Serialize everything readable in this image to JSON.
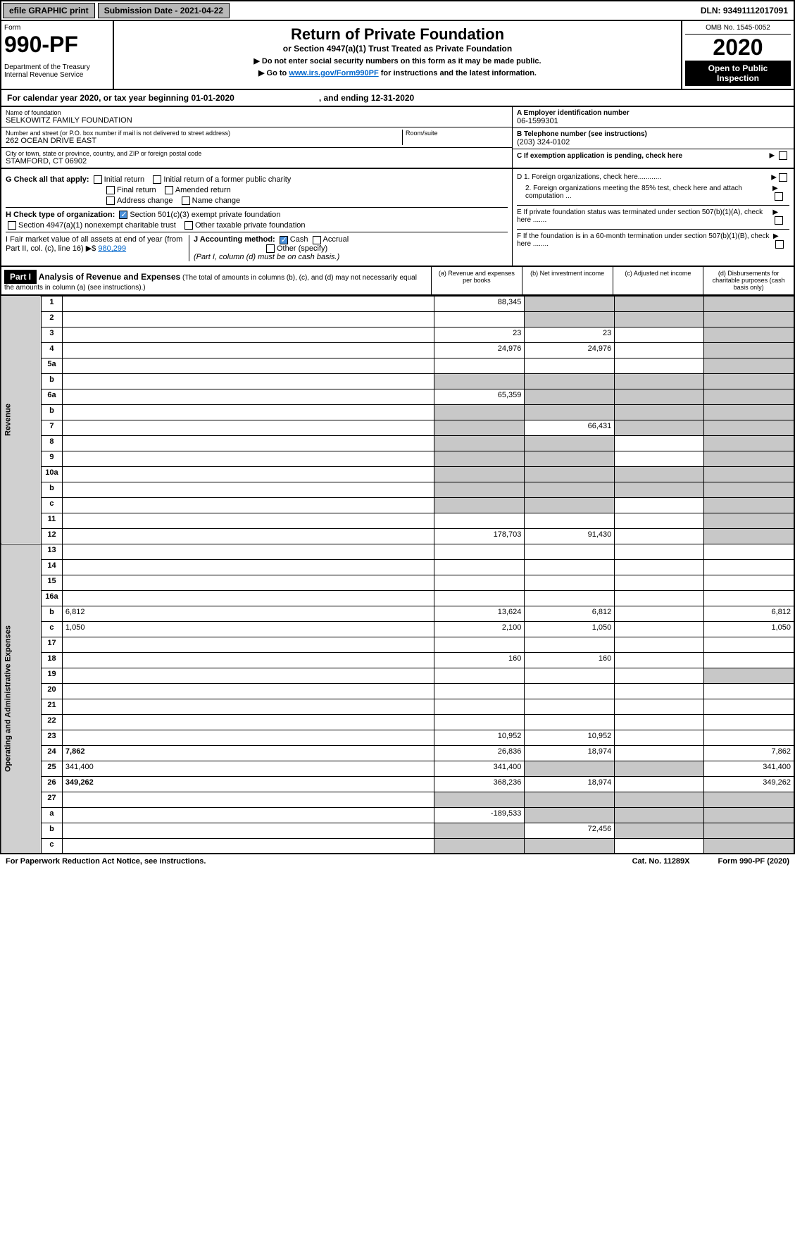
{
  "topbar": {
    "efile": "efile GRAPHIC print",
    "submission": "Submission Date - 2021-04-22",
    "dln": "DLN: 93491112017091"
  },
  "header": {
    "form_label": "Form",
    "form_num": "990-PF",
    "dept": "Department of the Treasury Internal Revenue Service",
    "title": "Return of Private Foundation",
    "subtitle": "or Section 4947(a)(1) Trust Treated as Private Foundation",
    "instr1": "▶ Do not enter social security numbers on this form as it may be made public.",
    "instr2": "▶ Go to ",
    "instr2_link": "www.irs.gov/Form990PF",
    "instr2_end": " for instructions and the latest information.",
    "omb": "OMB No. 1545-0052",
    "year": "2020",
    "open": "Open to Public Inspection"
  },
  "calyear": {
    "text": "For calendar year 2020, or tax year beginning 01-01-2020",
    "end": ", and ending 12-31-2020"
  },
  "info": {
    "name_label": "Name of foundation",
    "name": "SELKOWITZ FAMILY FOUNDATION",
    "addr_label": "Number and street (or P.O. box number if mail is not delivered to street address)",
    "addr": "262 OCEAN DRIVE EAST",
    "room_label": "Room/suite",
    "city_label": "City or town, state or province, country, and ZIP or foreign postal code",
    "city": "STAMFORD, CT  06902",
    "a_label": "A Employer identification number",
    "a_val": "06-1599301",
    "b_label": "B Telephone number (see instructions)",
    "b_val": "(203) 324-0102",
    "c_label": "C If exemption application is pending, check here"
  },
  "checks": {
    "g": "G Check all that apply:",
    "g1": "Initial return",
    "g2": "Initial return of a former public charity",
    "g3": "Final return",
    "g4": "Amended return",
    "g5": "Address change",
    "g6": "Name change",
    "h": "H Check type of organization:",
    "h1": "Section 501(c)(3) exempt private foundation",
    "h2": "Section 4947(a)(1) nonexempt charitable trust",
    "h3": "Other taxable private foundation",
    "i": "I Fair market value of all assets at end of year (from Part II, col. (c), line 16) ▶$ ",
    "i_val": "980,299",
    "j": "J Accounting method:",
    "j1": "Cash",
    "j2": "Accrual",
    "j3": "Other (specify)",
    "j_note": "(Part I, column (d) must be on cash basis.)",
    "d1": "D 1. Foreign organizations, check here............",
    "d2": "2. Foreign organizations meeting the 85% test, check here and attach computation ...",
    "e": "E  If private foundation status was terminated under section 507(b)(1)(A), check here .......",
    "f": "F  If the foundation is in a 60-month termination under section 507(b)(1)(B), check here ........"
  },
  "part1": {
    "label": "Part I",
    "title": "Analysis of Revenue and Expenses",
    "note": "(The total of amounts in columns (b), (c), and (d) may not necessarily equal the amounts in column (a) (see instructions).)",
    "col_a": "(a)    Revenue and expenses per books",
    "col_b": "(b)   Net investment income",
    "col_c": "(c)   Adjusted net income",
    "col_d": "(d)   Disbursements for charitable purposes (cash basis only)"
  },
  "rows": [
    {
      "n": "1",
      "d": "",
      "a": "88,345",
      "b": "",
      "c": "",
      "sb": true,
      "sc": true,
      "sd": true
    },
    {
      "n": "2",
      "d": "",
      "a": "",
      "b": "",
      "c": "",
      "sb": true,
      "sc": true,
      "sd": true
    },
    {
      "n": "3",
      "d": "",
      "a": "23",
      "b": "23",
      "c": "",
      "sd": true
    },
    {
      "n": "4",
      "d": "",
      "a": "24,976",
      "b": "24,976",
      "c": "",
      "sd": true
    },
    {
      "n": "5a",
      "d": "",
      "a": "",
      "b": "",
      "c": "",
      "sd": true
    },
    {
      "n": "b",
      "d": "",
      "a": "",
      "b": "",
      "c": "",
      "sa": true,
      "sb": true,
      "sc": true,
      "sd": true
    },
    {
      "n": "6a",
      "d": "",
      "a": "65,359",
      "b": "",
      "c": "",
      "sb": true,
      "sc": true,
      "sd": true
    },
    {
      "n": "b",
      "d": "",
      "a": "",
      "b": "",
      "c": "",
      "sa": true,
      "sb": true,
      "sc": true,
      "sd": true
    },
    {
      "n": "7",
      "d": "",
      "a": "",
      "b": "66,431",
      "c": "",
      "sa": true,
      "sc": true,
      "sd": true
    },
    {
      "n": "8",
      "d": "",
      "a": "",
      "b": "",
      "c": "",
      "sa": true,
      "sb": true,
      "sd": true
    },
    {
      "n": "9",
      "d": "",
      "a": "",
      "b": "",
      "c": "",
      "sa": true,
      "sb": true,
      "sd": true
    },
    {
      "n": "10a",
      "d": "",
      "a": "",
      "b": "",
      "c": "",
      "sa": true,
      "sb": true,
      "sc": true,
      "sd": true
    },
    {
      "n": "b",
      "d": "",
      "a": "",
      "b": "",
      "c": "",
      "sa": true,
      "sb": true,
      "sc": true,
      "sd": true
    },
    {
      "n": "c",
      "d": "",
      "a": "",
      "b": "",
      "c": "",
      "sa": true,
      "sb": true,
      "sd": true
    },
    {
      "n": "11",
      "d": "",
      "a": "",
      "b": "",
      "c": "",
      "sd": true
    },
    {
      "n": "12",
      "d": "",
      "a": "178,703",
      "b": "91,430",
      "c": "",
      "bold": true,
      "sd": true
    },
    {
      "n": "13",
      "d": "",
      "a": "",
      "b": "",
      "c": ""
    },
    {
      "n": "14",
      "d": "",
      "a": "",
      "b": "",
      "c": ""
    },
    {
      "n": "15",
      "d": "",
      "a": "",
      "b": "",
      "c": ""
    },
    {
      "n": "16a",
      "d": "",
      "a": "",
      "b": "",
      "c": ""
    },
    {
      "n": "b",
      "d": "6,812",
      "a": "13,624",
      "b": "6,812",
      "c": ""
    },
    {
      "n": "c",
      "d": "1,050",
      "a": "2,100",
      "b": "1,050",
      "c": ""
    },
    {
      "n": "17",
      "d": "",
      "a": "",
      "b": "",
      "c": ""
    },
    {
      "n": "18",
      "d": "",
      "a": "160",
      "b": "160",
      "c": ""
    },
    {
      "n": "19",
      "d": "",
      "a": "",
      "b": "",
      "c": "",
      "sd": true
    },
    {
      "n": "20",
      "d": "",
      "a": "",
      "b": "",
      "c": ""
    },
    {
      "n": "21",
      "d": "",
      "a": "",
      "b": "",
      "c": ""
    },
    {
      "n": "22",
      "d": "",
      "a": "",
      "b": "",
      "c": ""
    },
    {
      "n": "23",
      "d": "",
      "a": "10,952",
      "b": "10,952",
      "c": ""
    },
    {
      "n": "24",
      "d": "7,862",
      "a": "26,836",
      "b": "18,974",
      "c": "",
      "bold": true
    },
    {
      "n": "25",
      "d": "341,400",
      "a": "341,400",
      "b": "",
      "c": "",
      "sb": true,
      "sc": true
    },
    {
      "n": "26",
      "d": "349,262",
      "a": "368,236",
      "b": "18,974",
      "c": "",
      "bold": true
    },
    {
      "n": "27",
      "d": "",
      "a": "",
      "b": "",
      "c": "",
      "sa": true,
      "sb": true,
      "sc": true,
      "sd": true
    },
    {
      "n": "a",
      "d": "",
      "a": "-189,533",
      "b": "",
      "c": "",
      "bold": true,
      "sb": true,
      "sc": true,
      "sd": true
    },
    {
      "n": "b",
      "d": "",
      "a": "",
      "b": "72,456",
      "c": "",
      "bold": true,
      "sa": true,
      "sc": true,
      "sd": true
    },
    {
      "n": "c",
      "d": "",
      "a": "",
      "b": "",
      "c": "",
      "bold": true,
      "sa": true,
      "sb": true,
      "sd": true
    }
  ],
  "vert": {
    "rev": "Revenue",
    "exp": "Operating and Administrative Expenses"
  },
  "footer": {
    "left": "For Paperwork Reduction Act Notice, see instructions.",
    "mid": "Cat. No. 11289X",
    "right": "Form 990-PF (2020)"
  }
}
